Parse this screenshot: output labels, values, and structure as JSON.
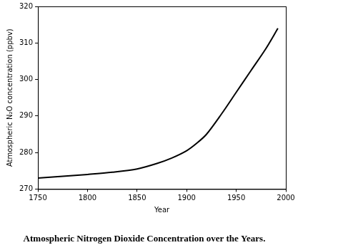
{
  "chart_data": {
    "type": "line",
    "title": "Atmospheric Nitrogen Dioxide Concentration over the Years.",
    "x_label": "Year",
    "y_label": "Atmospheric N₂O concentration (ppbv)",
    "x": [
      1750,
      1775,
      1800,
      1825,
      1850,
      1870,
      1885,
      1900,
      1910,
      1920,
      1935,
      1950,
      1965,
      1980,
      1992
    ],
    "values": [
      273,
      273.5,
      274,
      274.6,
      275.5,
      277,
      278.5,
      280.5,
      282.5,
      285,
      290.5,
      296.5,
      302.5,
      308.5,
      314
    ],
    "color": "#000000",
    "xlim": [
      1750,
      2000
    ],
    "xticks": [
      1750,
      1800,
      1850,
      1900,
      1950,
      2000
    ],
    "ylim": [
      270,
      320
    ],
    "yticks": [
      270,
      280,
      290,
      300,
      310,
      320
    ],
    "grid": false
  }
}
